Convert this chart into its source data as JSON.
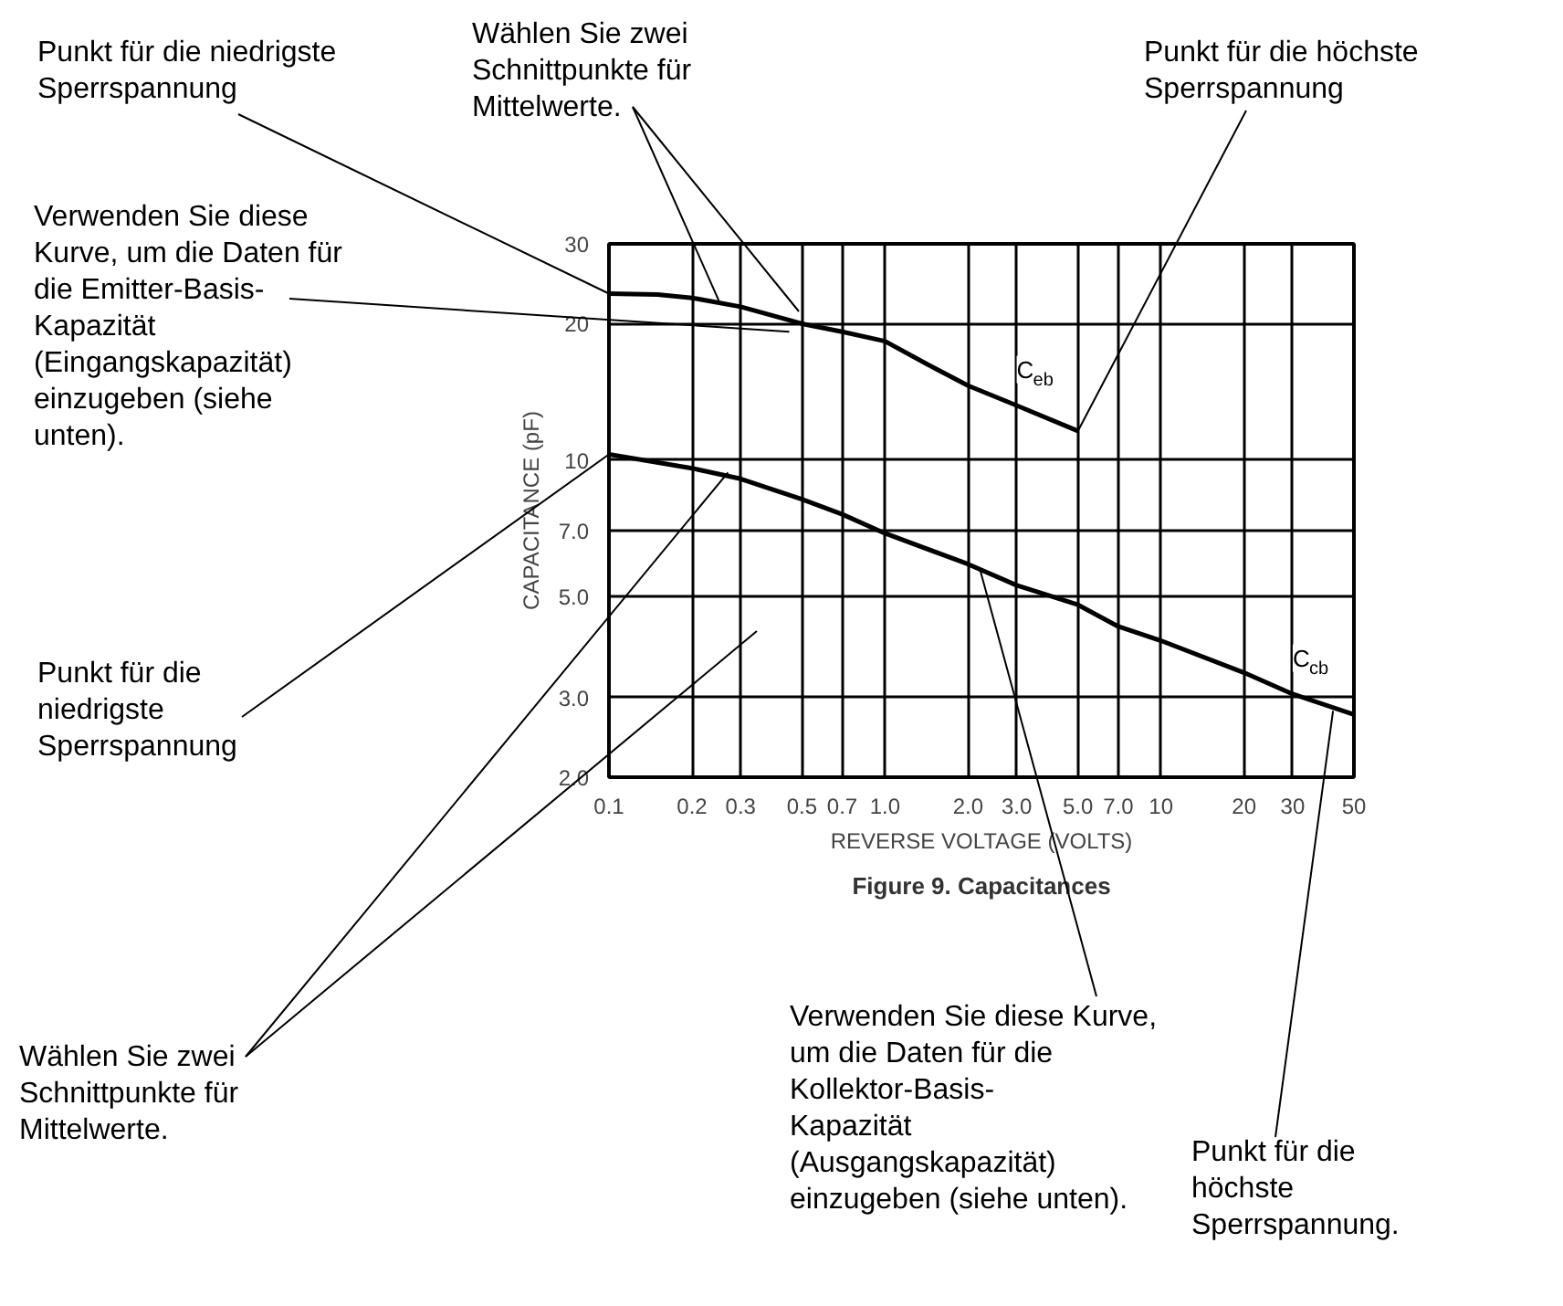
{
  "chart_data": {
    "type": "line",
    "title": "Figure 9. Capacitances",
    "xlabel": "REVERSE VOLTAGE (VOLTS)",
    "ylabel": "CAPACITANCE (pF)",
    "log": "xy",
    "xlim": [
      0.1,
      50
    ],
    "ylim": [
      2,
      30
    ],
    "xticks": [
      0.1,
      0.2,
      0.3,
      0.5,
      0.7,
      {
        "value": 1,
        "label": "1.0"
      },
      {
        "value": 2,
        "label": "2.0"
      },
      {
        "value": 3,
        "label": "3.0"
      },
      {
        "value": 5,
        "label": "5.0"
      },
      {
        "value": 7,
        "label": "7.0"
      },
      10,
      20,
      30,
      50
    ],
    "yticks": [
      {
        "value": 2,
        "label": "2.0"
      },
      {
        "value": 3,
        "label": "3.0"
      },
      {
        "value": 5,
        "label": "5.0"
      },
      {
        "value": 7,
        "label": "7.0"
      },
      10,
      20,
      30
    ],
    "grid": true,
    "marker": "none",
    "line_style": "solid",
    "series": [
      {
        "name": "C$_{eb}$",
        "color": "#000000",
        "x": [
          0.1,
          0.15,
          0.2,
          0.3,
          0.5,
          0.7,
          1,
          1.5,
          2,
          3,
          5
        ],
        "values": [
          23.3,
          23.2,
          22.8,
          21.8,
          20,
          19.2,
          18.3,
          16,
          14.6,
          13.2,
          11.6
        ]
      },
      {
        "name": "C$_{cb}$",
        "color": "#000000",
        "x": [
          0.1,
          0.2,
          0.3,
          0.5,
          0.7,
          1,
          2,
          3,
          5,
          7,
          10,
          20,
          30,
          50
        ],
        "values": [
          10.3,
          9.6,
          9.1,
          8.2,
          7.6,
          6.9,
          5.9,
          5.3,
          4.8,
          4.3,
          4,
          3.4,
          3.05,
          2.75
        ]
      }
    ],
    "annotations": [
      {
        "text": "Punkt für die niedrigste\nSperrspannung",
        "x": 0.1,
        "y": 23.3
      },
      {
        "text": "Wählen Sie zwei\nSchnittpunkte für\nMittelwerte.",
        "x": 0.25,
        "y": 22.5
      },
      {
        "text": "Punkt für die höchste\nSperrspannung",
        "x": 5,
        "y": 11.6
      },
      {
        "text": "Verwenden Sie diese\nKurve, um die Daten für\ndie Emitter-Basis-\nKapazität\n(Eingangskapazität)\neinzugeben (siehe\nunten).",
        "x": 0.45,
        "y": 19.2
      },
      {
        "text": "Punkt für die\nniedrigste\nSperrspannung",
        "x": 0.1,
        "y": 10.3
      },
      {
        "text": "Wählen Sie zwei\nSchnittpunkte für\nMittelwerte.",
        "x": 0.27,
        "y": 9.4
      },
      {
        "text": "Verwenden Sie diese Kurve,\num die Daten für die\nKollektor-Basis-\nKapazität\n(Ausgangskapazität)\neinzugeben (siehe unten).",
        "x": 2.2,
        "y": 5.8
      },
      {
        "text": "Punkt für die\nhöchste\nSperrspannung.",
        "x": 42,
        "y": 2.8
      }
    ]
  }
}
